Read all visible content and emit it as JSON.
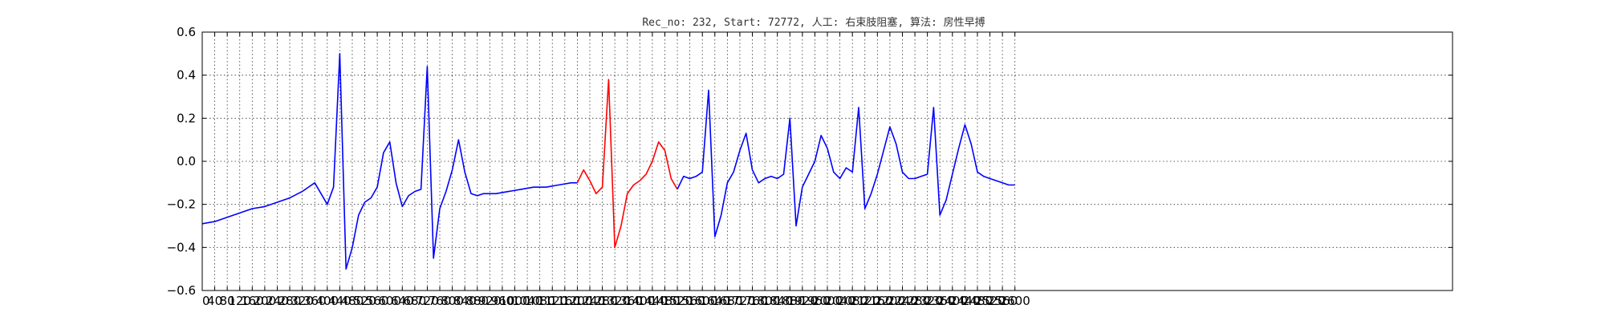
{
  "chart_data": {
    "type": "line",
    "title": "Rec_no: 232, Start: 72772, 人工: 右束肢阻塞, 算法: 房性早搏",
    "xlabel": "",
    "ylabel": "",
    "xlim": [
      0,
      4000
    ],
    "ylim": [
      -0.6,
      0.6
    ],
    "grid": true,
    "y_ticks": [
      -0.6,
      -0.4,
      -0.2,
      0.0,
      0.2,
      0.4,
      0.6
    ],
    "y_tick_labels": [
      "−0.6",
      "−0.4",
      "−0.2",
      "0.0",
      "0.2",
      "0.4",
      "0.6"
    ],
    "x_ticks": [
      0,
      40,
      80,
      120,
      160,
      200,
      240,
      280,
      320,
      360,
      400,
      440,
      480,
      520,
      560,
      600,
      640,
      680,
      720,
      760,
      800,
      840,
      880,
      920,
      960,
      1000,
      1040,
      1080,
      1120,
      1160,
      1200,
      1240,
      1280,
      1320,
      1360,
      1400,
      1440,
      1480,
      1520,
      1560,
      1600,
      1640,
      1680,
      1720,
      1760,
      1800,
      1840,
      1880,
      1920,
      1960,
      2000,
      2040,
      2080,
      2120,
      2160,
      2200,
      2240,
      2280,
      2320,
      2360,
      2400,
      2440,
      2480,
      2520,
      2560,
      2600
    ],
    "x_tick_labels": [
      "0",
      "40",
      "80",
      "120",
      "160",
      "200",
      "240",
      "280",
      "320",
      "360",
      "400",
      "440",
      "480",
      "520",
      "560",
      "600",
      "640",
      "680",
      "720",
      "760",
      "800",
      "840",
      "880",
      "920",
      "960",
      "1000",
      "1040",
      "1080",
      "1120",
      "1160",
      "1200",
      "1240",
      "1280",
      "1320",
      "1360",
      "1400",
      "1440",
      "1480",
      "1520",
      "1560",
      "1600",
      "1640",
      "1680",
      "1720",
      "1760",
      "1800",
      "1840",
      "1880",
      "1920",
      "1960",
      "2000",
      "2040",
      "2080",
      "2120",
      "2160",
      "2200",
      "2240",
      "2280",
      "2320",
      "2360",
      "2400",
      "2440",
      "2480",
      "2520",
      "2560",
      "2600"
    ],
    "series": [
      {
        "color": "#0000ff",
        "x": [
          0,
          40,
          80,
          120,
          160,
          200,
          240,
          280,
          320,
          360,
          400,
          420,
          440,
          460,
          480,
          500,
          520,
          540,
          560,
          580,
          600,
          620,
          640,
          660,
          680,
          700,
          720,
          740,
          760,
          780,
          800,
          820,
          840,
          860,
          880,
          900,
          940,
          980,
          1020,
          1060,
          1100,
          1140,
          1180,
          1200
        ],
        "y": [
          -0.29,
          -0.28,
          -0.26,
          -0.24,
          -0.22,
          -0.21,
          -0.19,
          -0.17,
          -0.14,
          -0.1,
          -0.2,
          -0.12,
          0.5,
          -0.5,
          -0.4,
          -0.25,
          -0.19,
          -0.17,
          -0.12,
          0.04,
          0.09,
          -0.1,
          -0.21,
          -0.16,
          -0.14,
          -0.13,
          0.44,
          -0.45,
          -0.22,
          -0.14,
          -0.04,
          0.1,
          -0.05,
          -0.15,
          -0.16,
          -0.15,
          -0.15,
          -0.14,
          -0.13,
          -0.12,
          -0.12,
          -0.11,
          -0.1,
          -0.1
        ]
      },
      {
        "color": "#ff0000",
        "x": [
          1200,
          1220,
          1240,
          1260,
          1280,
          1300,
          1320,
          1340,
          1360,
          1380,
          1400,
          1420,
          1440,
          1460,
          1480,
          1500,
          1520
        ],
        "y": [
          -0.1,
          -0.04,
          -0.09,
          -0.15,
          -0.12,
          0.38,
          -0.4,
          -0.3,
          -0.15,
          -0.11,
          -0.09,
          -0.06,
          0.0,
          0.09,
          0.05,
          -0.08,
          -0.13
        ]
      },
      {
        "color": "#0000ff",
        "x": [
          1520,
          1540,
          1560,
          1580,
          1600,
          1620,
          1640,
          1660,
          1680,
          1700,
          1720,
          1740,
          1760,
          1780,
          1800,
          1820,
          1840,
          1860,
          1880,
          1900,
          1920,
          1940,
          1960,
          1980,
          2000,
          2020,
          2040,
          2060,
          2080,
          2100,
          2120,
          2140,
          2160,
          2180,
          2200,
          2220,
          2240,
          2260,
          2280,
          2300,
          2320,
          2340,
          2360,
          2380,
          2400,
          2420,
          2440,
          2460,
          2480,
          2500,
          2520,
          2540,
          2560,
          2580,
          2600
        ],
        "y": [
          -0.13,
          -0.07,
          -0.08,
          -0.07,
          -0.05,
          0.33,
          -0.35,
          -0.25,
          -0.1,
          -0.05,
          0.05,
          0.13,
          -0.04,
          -0.1,
          -0.08,
          -0.07,
          -0.08,
          -0.06,
          0.2,
          -0.3,
          -0.12,
          -0.06,
          0.0,
          0.12,
          0.06,
          -0.05,
          -0.08,
          -0.03,
          -0.05,
          0.25,
          -0.22,
          -0.15,
          -0.06,
          0.05,
          0.16,
          0.08,
          -0.05,
          -0.08,
          -0.08,
          -0.07,
          -0.06,
          0.25,
          -0.25,
          -0.18,
          -0.06,
          0.06,
          0.17,
          0.08,
          -0.05,
          -0.07,
          -0.08,
          -0.09,
          -0.1,
          -0.11,
          -0.11
        ]
      }
    ]
  }
}
